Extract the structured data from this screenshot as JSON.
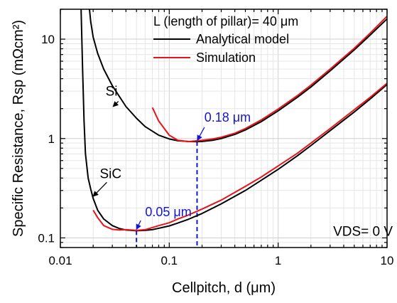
{
  "chart_data": {
    "type": "line",
    "x_scale": "log",
    "y_scale": "log",
    "xlim": [
      0.01,
      10
    ],
    "ylim": [
      0.08,
      20
    ],
    "xlabel": "Cellpitch, d (μm)",
    "ylabel": "Specific Resistance, Rsp (mΩcm²)",
    "x_ticks": [
      {
        "value": 0.01,
        "label": "0.01"
      },
      {
        "value": 0.1,
        "label": "0.1"
      },
      {
        "value": 1,
        "label": "1"
      },
      {
        "value": 10,
        "label": "10"
      }
    ],
    "y_ticks": [
      {
        "value": 0.1,
        "label": "0.1"
      },
      {
        "value": 1,
        "label": "1"
      },
      {
        "value": 10,
        "label": "10"
      }
    ],
    "grid": true,
    "legend": {
      "placement": "top-right",
      "header": "L (length of pillar)= 40 μm",
      "entries": [
        {
          "label": "Analytical model",
          "color": "#000000"
        },
        {
          "label": "Simulation",
          "color": "#e8141b"
        }
      ]
    },
    "series": [
      {
        "name": "Analytical model",
        "group": "Si",
        "color": "#000000",
        "x": [
          0.0185,
          0.019,
          0.02,
          0.022,
          0.025,
          0.03,
          0.04,
          0.05,
          0.06,
          0.08,
          0.1,
          0.12,
          0.15,
          0.18,
          0.2,
          0.25,
          0.3,
          0.4,
          0.5,
          0.7,
          1,
          1.5,
          2,
          3,
          5,
          7,
          10
        ],
        "y": [
          20,
          15,
          10.5,
          7.2,
          5.0,
          3.4,
          2.1,
          1.6,
          1.32,
          1.08,
          0.99,
          0.95,
          0.935,
          0.93,
          0.935,
          0.96,
          1.0,
          1.1,
          1.22,
          1.48,
          1.9,
          2.6,
          3.3,
          4.8,
          7.8,
          11,
          16
        ]
      },
      {
        "name": "Simulation",
        "group": "Si",
        "color": "#e8141b",
        "x": [
          0.07,
          0.08,
          0.1,
          0.12,
          0.15,
          0.18,
          0.2,
          0.25,
          0.3,
          0.4,
          0.5,
          0.7,
          1,
          1.5,
          2,
          3,
          5,
          7,
          10
        ],
        "y": [
          2.05,
          1.5,
          1.08,
          0.96,
          0.93,
          0.95,
          0.96,
          0.99,
          1.03,
          1.13,
          1.26,
          1.54,
          1.98,
          2.7,
          3.45,
          5.0,
          8.1,
          11.5,
          17
        ]
      },
      {
        "name": "Analytical model",
        "group": "SiC",
        "color": "#000000",
        "x": [
          0.0155,
          0.016,
          0.0165,
          0.017,
          0.018,
          0.019,
          0.02,
          0.022,
          0.025,
          0.03,
          0.035,
          0.04,
          0.05,
          0.06,
          0.07,
          0.08,
          0.1,
          0.12,
          0.15,
          0.2,
          0.3,
          0.5,
          0.7,
          1,
          1.5,
          2,
          3,
          5,
          7,
          10
        ],
        "y": [
          20,
          5,
          1.5,
          0.7,
          0.4,
          0.31,
          0.25,
          0.19,
          0.155,
          0.133,
          0.124,
          0.12,
          0.118,
          0.119,
          0.121,
          0.125,
          0.132,
          0.141,
          0.154,
          0.176,
          0.22,
          0.3,
          0.38,
          0.49,
          0.67,
          0.85,
          1.2,
          1.85,
          2.5,
          3.5
        ]
      },
      {
        "name": "Simulation",
        "group": "SiC",
        "color": "#e8141b",
        "x": [
          0.02,
          0.022,
          0.025,
          0.03,
          0.035,
          0.04,
          0.045,
          0.05,
          0.06,
          0.07,
          0.08,
          0.1,
          0.12,
          0.15,
          0.2,
          0.3,
          0.5,
          0.7,
          1,
          1.5,
          2,
          3,
          5,
          7,
          10
        ],
        "y": [
          0.19,
          0.16,
          0.133,
          0.122,
          0.12,
          0.121,
          0.12,
          0.119,
          0.121,
          0.127,
          0.133,
          0.142,
          0.155,
          0.17,
          0.195,
          0.24,
          0.33,
          0.41,
          0.53,
          0.71,
          0.9,
          1.26,
          1.95,
          2.6,
          3.6
        ]
      }
    ],
    "annotations": [
      {
        "id": "label-si",
        "text": "Si",
        "at": {
          "x": 0.026,
          "y": 2.7
        },
        "arrow_to": {
          "x": 0.0305,
          "y": 2.1
        }
      },
      {
        "id": "label-sic",
        "text": "SiC",
        "at": {
          "x": 0.023,
          "y": 0.4
        },
        "arrow_to": {
          "x": 0.02,
          "y": 0.262
        }
      },
      {
        "id": "label-018",
        "text": "0.18 μm",
        "at": {
          "x": 0.21,
          "y": 1.48
        },
        "arrow_to": {
          "x": 0.181,
          "y": 0.96
        },
        "color": "#1515d6"
      },
      {
        "id": "label-005",
        "text": "0.05 μm",
        "at": {
          "x": 0.06,
          "y": 0.165
        },
        "arrow_to": {
          "x": 0.05,
          "y": 0.122
        },
        "color": "#1515d6"
      },
      {
        "id": "label-vds",
        "text": "VDS= 0 V",
        "at": {
          "x": 3.2,
          "y": 0.105
        }
      }
    ],
    "markers": [
      {
        "x": 0.18,
        "y_from": 0.08,
        "y_to": 0.93,
        "color": "#1515d6",
        "style": "dashed"
      },
      {
        "x": 0.05,
        "y_from": 0.08,
        "y_to": 0.118,
        "color": "#1515d6",
        "style": "dashed"
      }
    ]
  }
}
